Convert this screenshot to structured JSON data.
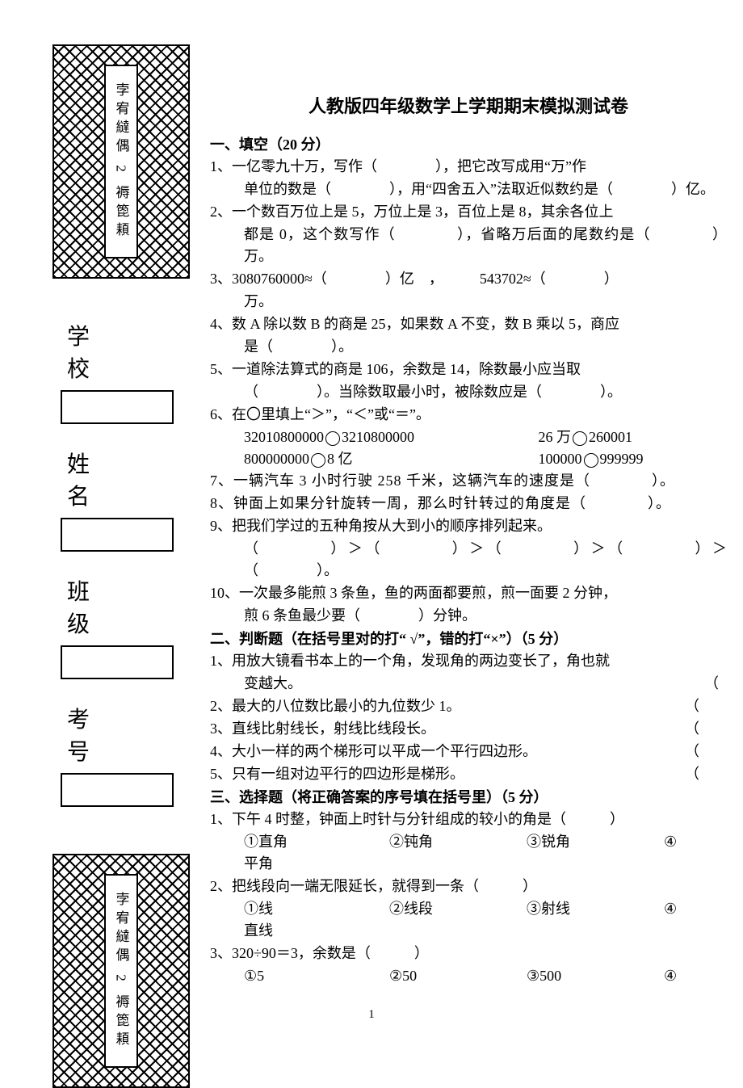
{
  "sidebar": {
    "vertical_text": "孛宥繨偶 2 褥箆頛",
    "labels": {
      "school": "学 校",
      "name": "姓 名",
      "class": "班 级",
      "examno": "考 号"
    }
  },
  "title": "人教版四年级数学上学期期末模拟测试卷",
  "sections": {
    "s1": {
      "header": "一、填空（20 分）",
      "q1": "1、一亿零九十万，写作（　　　　），把它改写成用“万”作",
      "q1b": "单位的数是（　　　　），用“四舍五入”法取近似数约是（　　　　）亿。",
      "q2": "2、一个数百万位上是 5，万位上是 3，百位上是 8，其余各位上",
      "q2b": "都是 0，这个数写作（　　　　），省略万后面的尾数约是（　　　　）万。",
      "q3": "3、3080760000≈（　　　　）亿　，　　　543702≈（　　　　）",
      "q3b": "万。",
      "q4": "4、数 A 除以数 B 的商是 25，如果数 A 不变，数 B 乘以 5，商应",
      "q4b": "是（　　　　）。",
      "q5": "5、一道除法算式的商是 106，余数是 14，除数最小应当取",
      "q5b": "（　　　　）。当除数取最小时，被除数应是（　　　　）。",
      "q6": "6、在〇里填上“＞”，“＜”或“＝”。",
      "q6_l1a": "32010800000",
      "q6_l1b": "3210800000",
      "q6_r1a": "26 万",
      "q6_r1b": "260001",
      "q6_l2a": "800000000",
      "q6_l2b": "8 亿",
      "q6_r2a": "100000",
      "q6_r2b": "999999",
      "q7": "7、一辆汽车 3 小时行驶 258 千米，这辆汽车的速度是（　　　　）。",
      "q8": "8、钟面上如果分针旋转一周，那么时针转过的角度是（　　　　）。",
      "q9": "9、把我们学过的五种角按从大到小的顺序排列起来。",
      "q9b": "（　　　　）＞（　　　　）＞（　　　　）＞（　　　　）＞（　　　　）。",
      "q10": "10、一次最多能煎 3 条鱼，鱼的两面都要煎，煎一面要 2 分钟，",
      "q10b": "煎 6 条鱼最少要（　　　　）分钟。"
    },
    "s2": {
      "header": "二、判断题（在括号里对的打“ √”，错的打“×”）（5 分）",
      "q1": "1、用放大镜看书本上的一个角，发现角的两边变长了，角也就",
      "q1b": "变越大。",
      "q2": "2、最大的八位数比最小的九位数少 1。",
      "q3": "3、直线比射线长，射线比线段长。",
      "q4": "4、大小一样的两个梯形可以平成一个平行四边形。",
      "q5": "5、只有一组对边平行的四边形是梯形。",
      "paren": "（"
    },
    "s3": {
      "header": "三、选择题（将正确答案的序号填在括号里）（5 分）",
      "q1": "1、下午 4 时整，钟面上时针与分针组成的较小的角是（　　　）",
      "q1_opts": {
        "a": "①直角",
        "b": "②钝角",
        "c": "③锐角",
        "d": "④"
      },
      "q1_tail": "平角",
      "q2": "2、把线段向一端无限延长，就得到一条（　　　）",
      "q2_opts": {
        "a": "①线",
        "b": "②线段",
        "c": "③射线",
        "d": "④"
      },
      "q2_tail": "直线",
      "q3": "3、320÷90＝3，余数是（　　　）",
      "q3_opts": {
        "a": "①5",
        "b": "②50",
        "c": "③500",
        "d": "④"
      }
    }
  },
  "page_number": "1"
}
